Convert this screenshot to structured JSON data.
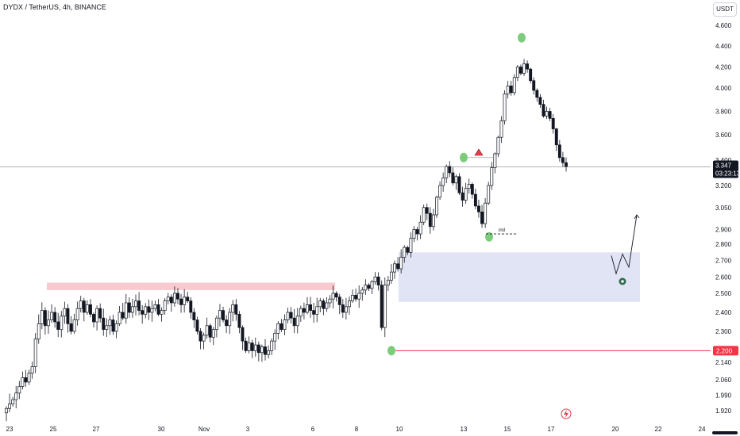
{
  "header": {
    "title": "DYDX / TetherUS, 4h, BINANCE",
    "currency": "USDT"
  },
  "chart_data": {
    "type": "candlestick",
    "symbol": "DYDX / TetherUS",
    "interval": "4h",
    "exchange": "BINANCE",
    "ylim": [
      1.88,
      4.72
    ],
    "y_ticks": [
      1.92,
      1.99,
      2.06,
      2.14,
      2.3,
      2.4,
      2.5,
      2.6,
      2.7,
      2.8,
      2.9,
      3.05,
      3.2,
      3.4,
      3.6,
      3.8,
      4.0,
      4.2,
      4.4,
      4.6
    ],
    "y_tick_labels": [
      "1.920",
      "1.990",
      "2.060",
      "2.140",
      "2.300",
      "2.400",
      "2.500",
      "2.600",
      "2.700",
      "2.800",
      "2.900",
      "3.050",
      "3.200",
      "3.400",
      "3.600",
      "3.800",
      "4.000",
      "4.200",
      "4.400",
      "4.600"
    ],
    "x_ticks": [
      "23",
      "25",
      "27",
      "30",
      "Nov",
      "3",
      "6",
      "8",
      "10",
      "13",
      "15",
      "17",
      "20",
      "22",
      "24"
    ],
    "last_price": "3.347",
    "countdown": "03:23:13",
    "level_label": "2.200",
    "annotation_label": "ind",
    "closes": [
      1.93,
      1.95,
      1.97,
      2.0,
      2.03,
      2.07,
      2.05,
      2.09,
      2.12,
      2.26,
      2.34,
      2.41,
      2.33,
      2.36,
      2.4,
      2.35,
      2.31,
      2.38,
      2.42,
      2.34,
      2.3,
      2.36,
      2.42,
      2.46,
      2.4,
      2.44,
      2.39,
      2.35,
      2.42,
      2.37,
      2.31,
      2.33,
      2.36,
      2.3,
      2.34,
      2.4,
      2.37,
      2.45,
      2.4,
      2.43,
      2.46,
      2.41,
      2.39,
      2.43,
      2.4,
      2.42,
      2.44,
      2.39,
      2.41,
      2.46,
      2.48,
      2.45,
      2.5,
      2.47,
      2.44,
      2.48,
      2.46,
      2.4,
      2.36,
      2.3,
      2.25,
      2.28,
      2.33,
      2.27,
      2.31,
      2.37,
      2.41,
      2.36,
      2.33,
      2.4,
      2.44,
      2.39,
      2.32,
      2.25,
      2.2,
      2.24,
      2.2,
      2.23,
      2.19,
      2.22,
      2.18,
      2.2,
      2.25,
      2.29,
      2.34,
      2.31,
      2.36,
      2.4,
      2.37,
      2.33,
      2.38,
      2.42,
      2.4,
      2.44,
      2.41,
      2.39,
      2.43,
      2.46,
      2.42,
      2.45,
      2.47,
      2.5,
      2.48,
      2.44,
      2.4,
      2.43,
      2.46,
      2.49,
      2.47,
      2.5,
      2.52,
      2.55,
      2.53,
      2.57,
      2.6,
      2.55,
      2.32,
      2.55,
      2.58,
      2.63,
      2.68,
      2.65,
      2.72,
      2.78,
      2.75,
      2.84,
      2.9,
      2.87,
      2.95,
      3.05,
      3.01,
      2.92,
      3.0,
      3.12,
      3.2,
      3.26,
      3.35,
      3.3,
      3.22,
      3.27,
      3.15,
      3.1,
      3.18,
      3.21,
      3.14,
      3.06,
      3.02,
      2.94,
      3.08,
      3.2,
      3.34,
      3.45,
      3.58,
      3.72,
      3.95,
      4.02,
      3.96,
      4.1,
      4.2,
      4.14,
      4.23,
      4.18,
      4.07,
      3.98,
      3.92,
      3.86,
      3.76,
      3.8,
      3.74,
      3.65,
      3.52,
      3.42,
      3.38,
      3.35
    ],
    "zones": [
      {
        "name": "resistance zone",
        "low": 2.52,
        "high": 2.565,
        "color": "#f8c9cf"
      },
      {
        "name": "demand zone",
        "low": 2.455,
        "high": 2.75,
        "color": "#dde1f3"
      }
    ],
    "horizontal_lines": [
      {
        "name": "current price",
        "value": 3.347,
        "color": "#9598a1"
      },
      {
        "name": "support level",
        "value": 2.2,
        "color": "#f23645"
      }
    ],
    "markers": [
      {
        "name": "swing-low-marker",
        "value": 2.2,
        "color": "#7ccc7c"
      },
      {
        "name": "swing-high-marker",
        "value": 3.42,
        "color": "#7ccc7c"
      },
      {
        "name": "higher-low-marker",
        "value": 2.85,
        "color": "#7ccc7c"
      },
      {
        "name": "top-marker",
        "value": 4.48,
        "color": "#7ccc7c"
      }
    ],
    "projection": [
      2.73,
      2.62,
      2.74,
      2.66,
      3.0
    ],
    "colors": {
      "up_body": "#ffffff",
      "down_body": "#131722",
      "wick": "#131722",
      "accent_red": "#f23645",
      "marker_green": "#7ccc7c"
    }
  }
}
